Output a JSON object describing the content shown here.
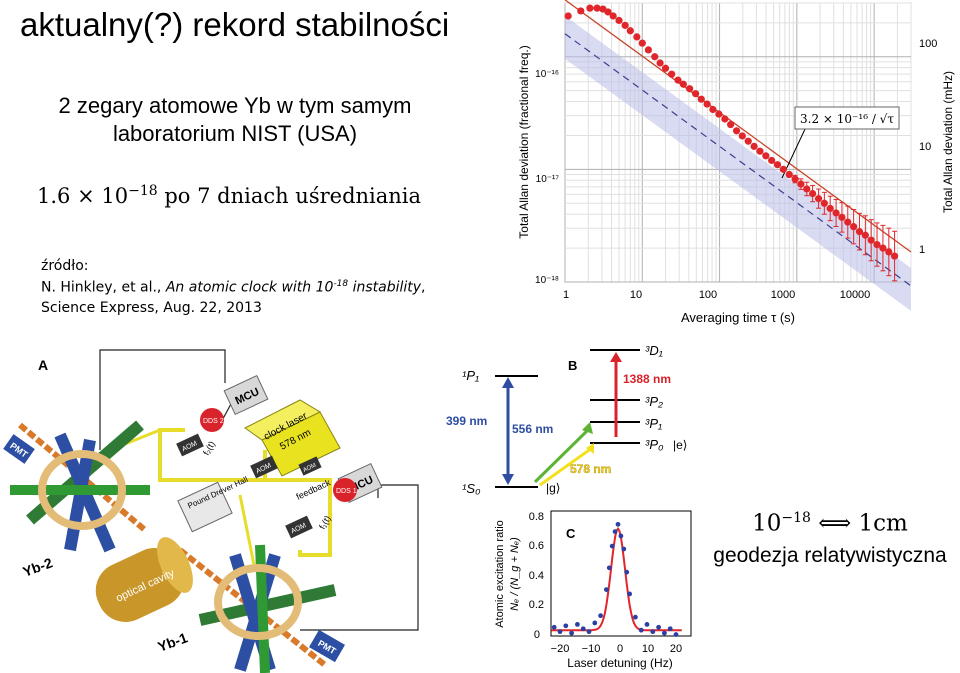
{
  "slide": {
    "title": "aktualny(?) rekord stabilności",
    "subtitle_line1": "2 zegary atomowe Yb w tym samym",
    "subtitle_line2": "laboratorium NIST (USA)",
    "formula": {
      "mantissa": "1.6",
      "times": "×",
      "base": "10",
      "exponent": "−18",
      "rest": " po 7 dniach uśredniania"
    },
    "source": {
      "label": "źródło:",
      "authors": "N. Hinkley, et al., ",
      "title_pre": "An atomic clock with 10",
      "title_exp": "-18",
      "title_post": " instability",
      "title_comma": ",",
      "line2": "Science Express, Aug. 22, 2013"
    },
    "geodesy": {
      "base": "10",
      "exponent": "−18",
      "arrow": " ⟺ ",
      "value": "1cm",
      "caption": "geodezja relatywistyczna"
    }
  },
  "allan_chart": {
    "ylabel_left": "Total Allan deviation (fractional freq.)",
    "ylabel_right": "Total Allan deviation (mHz)",
    "xlabel": "Averaging time τ (s)",
    "fit_label": "3.2 × 10⁻¹⁶ / √τ",
    "y_ticks": [
      "10⁻¹⁶",
      "10⁻¹⁷",
      "10⁻¹⁸"
    ],
    "x_ticks": [
      "1",
      "10",
      "100",
      "1000",
      "10000"
    ],
    "right_ticks": [
      "100",
      "10",
      "1"
    ]
  },
  "chart_data": {
    "type": "scatter",
    "x_scale": "log",
    "y_scale": "log",
    "xlim": [
      1,
      30000
    ],
    "ylim": [
      1e-18,
      3e-16
    ],
    "xlabel": "Averaging time τ (s)",
    "ylabel": "Total Allan deviation (fractional freq.)",
    "ylabel_right": "Total Allan deviation (mHz)",
    "annotation": "3.2 × 10⁻¹⁶ / √τ",
    "fit_coefficient": 3.2e-16,
    "x": [
      1.1,
      1.6,
      2.1,
      2.6,
      3.1,
      3.6,
      4.2,
      5,
      6,
      7,
      8.5,
      10,
      12,
      14.5,
      17,
      20,
      24,
      29,
      34,
      41,
      49,
      58,
      69,
      82,
      98,
      117,
      139,
      166,
      197,
      235,
      280,
      333,
      397,
      472,
      562,
      669,
      797,
      949,
      1130,
      1345,
      1600,
      1910,
      2270,
      2700,
      3220,
      3830,
      4560,
      5430,
      6460,
      7700,
      9160,
      10900,
      13000,
      15500,
      18400
    ],
    "y": [
      2.3e-16,
      2.55e-16,
      2.7e-16,
      2.7e-16,
      2.65e-16,
      2.5e-16,
      2.3e-16,
      2.1e-16,
      1.9e-16,
      1.7e-16,
      1.5e-16,
      1.32e-16,
      1.15e-16,
      1e-16,
      8.8e-17,
      7.9e-17,
      7e-17,
      6.2e-17,
      5.7e-17,
      5.2e-17,
      4.7e-17,
      4.2e-17,
      3.8e-17,
      3.4e-17,
      3.1e-17,
      2.8e-17,
      2.5e-17,
      2.2e-17,
      1.98e-17,
      1.78e-17,
      1.6e-17,
      1.45e-17,
      1.32e-17,
      1.2e-17,
      1.1e-17,
      1e-17,
      9e-18,
      8.2e-18,
      7.4e-18,
      6.7e-18,
      6.1e-18,
      5.5e-18,
      5e-18,
      4.5e-18,
      4.1e-18,
      3.75e-18,
      3.4e-18,
      3.1e-18,
      2.8e-18,
      2.6e-18,
      2.35e-18,
      2.15e-18,
      2e-18,
      1.85e-18,
      1.7e-18
    ],
    "point_color": "#e0262b",
    "line_color": "#c8452a",
    "band_color": "#b8bde8"
  },
  "level_diagram": {
    "panel": "B",
    "levels": [
      "¹P₁",
      "³D₁",
      "³P₂",
      "³P₁",
      "³P₀",
      "¹S₀"
    ],
    "state_e": "|e⟩",
    "state_g": "|g⟩",
    "transitions": [
      {
        "label": "399 nm",
        "color": "#2f4ea3"
      },
      {
        "label": "556 nm",
        "color": "#5cb335"
      },
      {
        "label": "578 nm",
        "color": "#f5e020"
      },
      {
        "label": "1388 nm",
        "color": "#d9232b"
      }
    ]
  },
  "spectrum_chart": {
    "panel": "C",
    "xlabel": "Laser detuning (Hz)",
    "ylabel": "Atomic excitation ratio",
    "ylabel2": "Nₑ / (N_g + Nₑ)",
    "x_ticks": [
      "−20",
      "−10",
      "0",
      "10",
      "20"
    ],
    "y_ticks": [
      "0",
      "0.2",
      "0.4",
      "0.6",
      "0.8"
    ]
  },
  "setup_diagram": {
    "panel": "A",
    "labels": [
      "MCU",
      "MCU",
      "clock laser",
      "578 nm",
      "AOM",
      "AOM",
      "AOM",
      "AOM",
      "DDS 2",
      "DDS 1",
      "f₂(t)",
      "f₁(t)",
      "Pound Drever Hall",
      "feedback",
      "optical cavity",
      "PMT",
      "PMT",
      "Yb-2",
      "Yb-1"
    ]
  }
}
